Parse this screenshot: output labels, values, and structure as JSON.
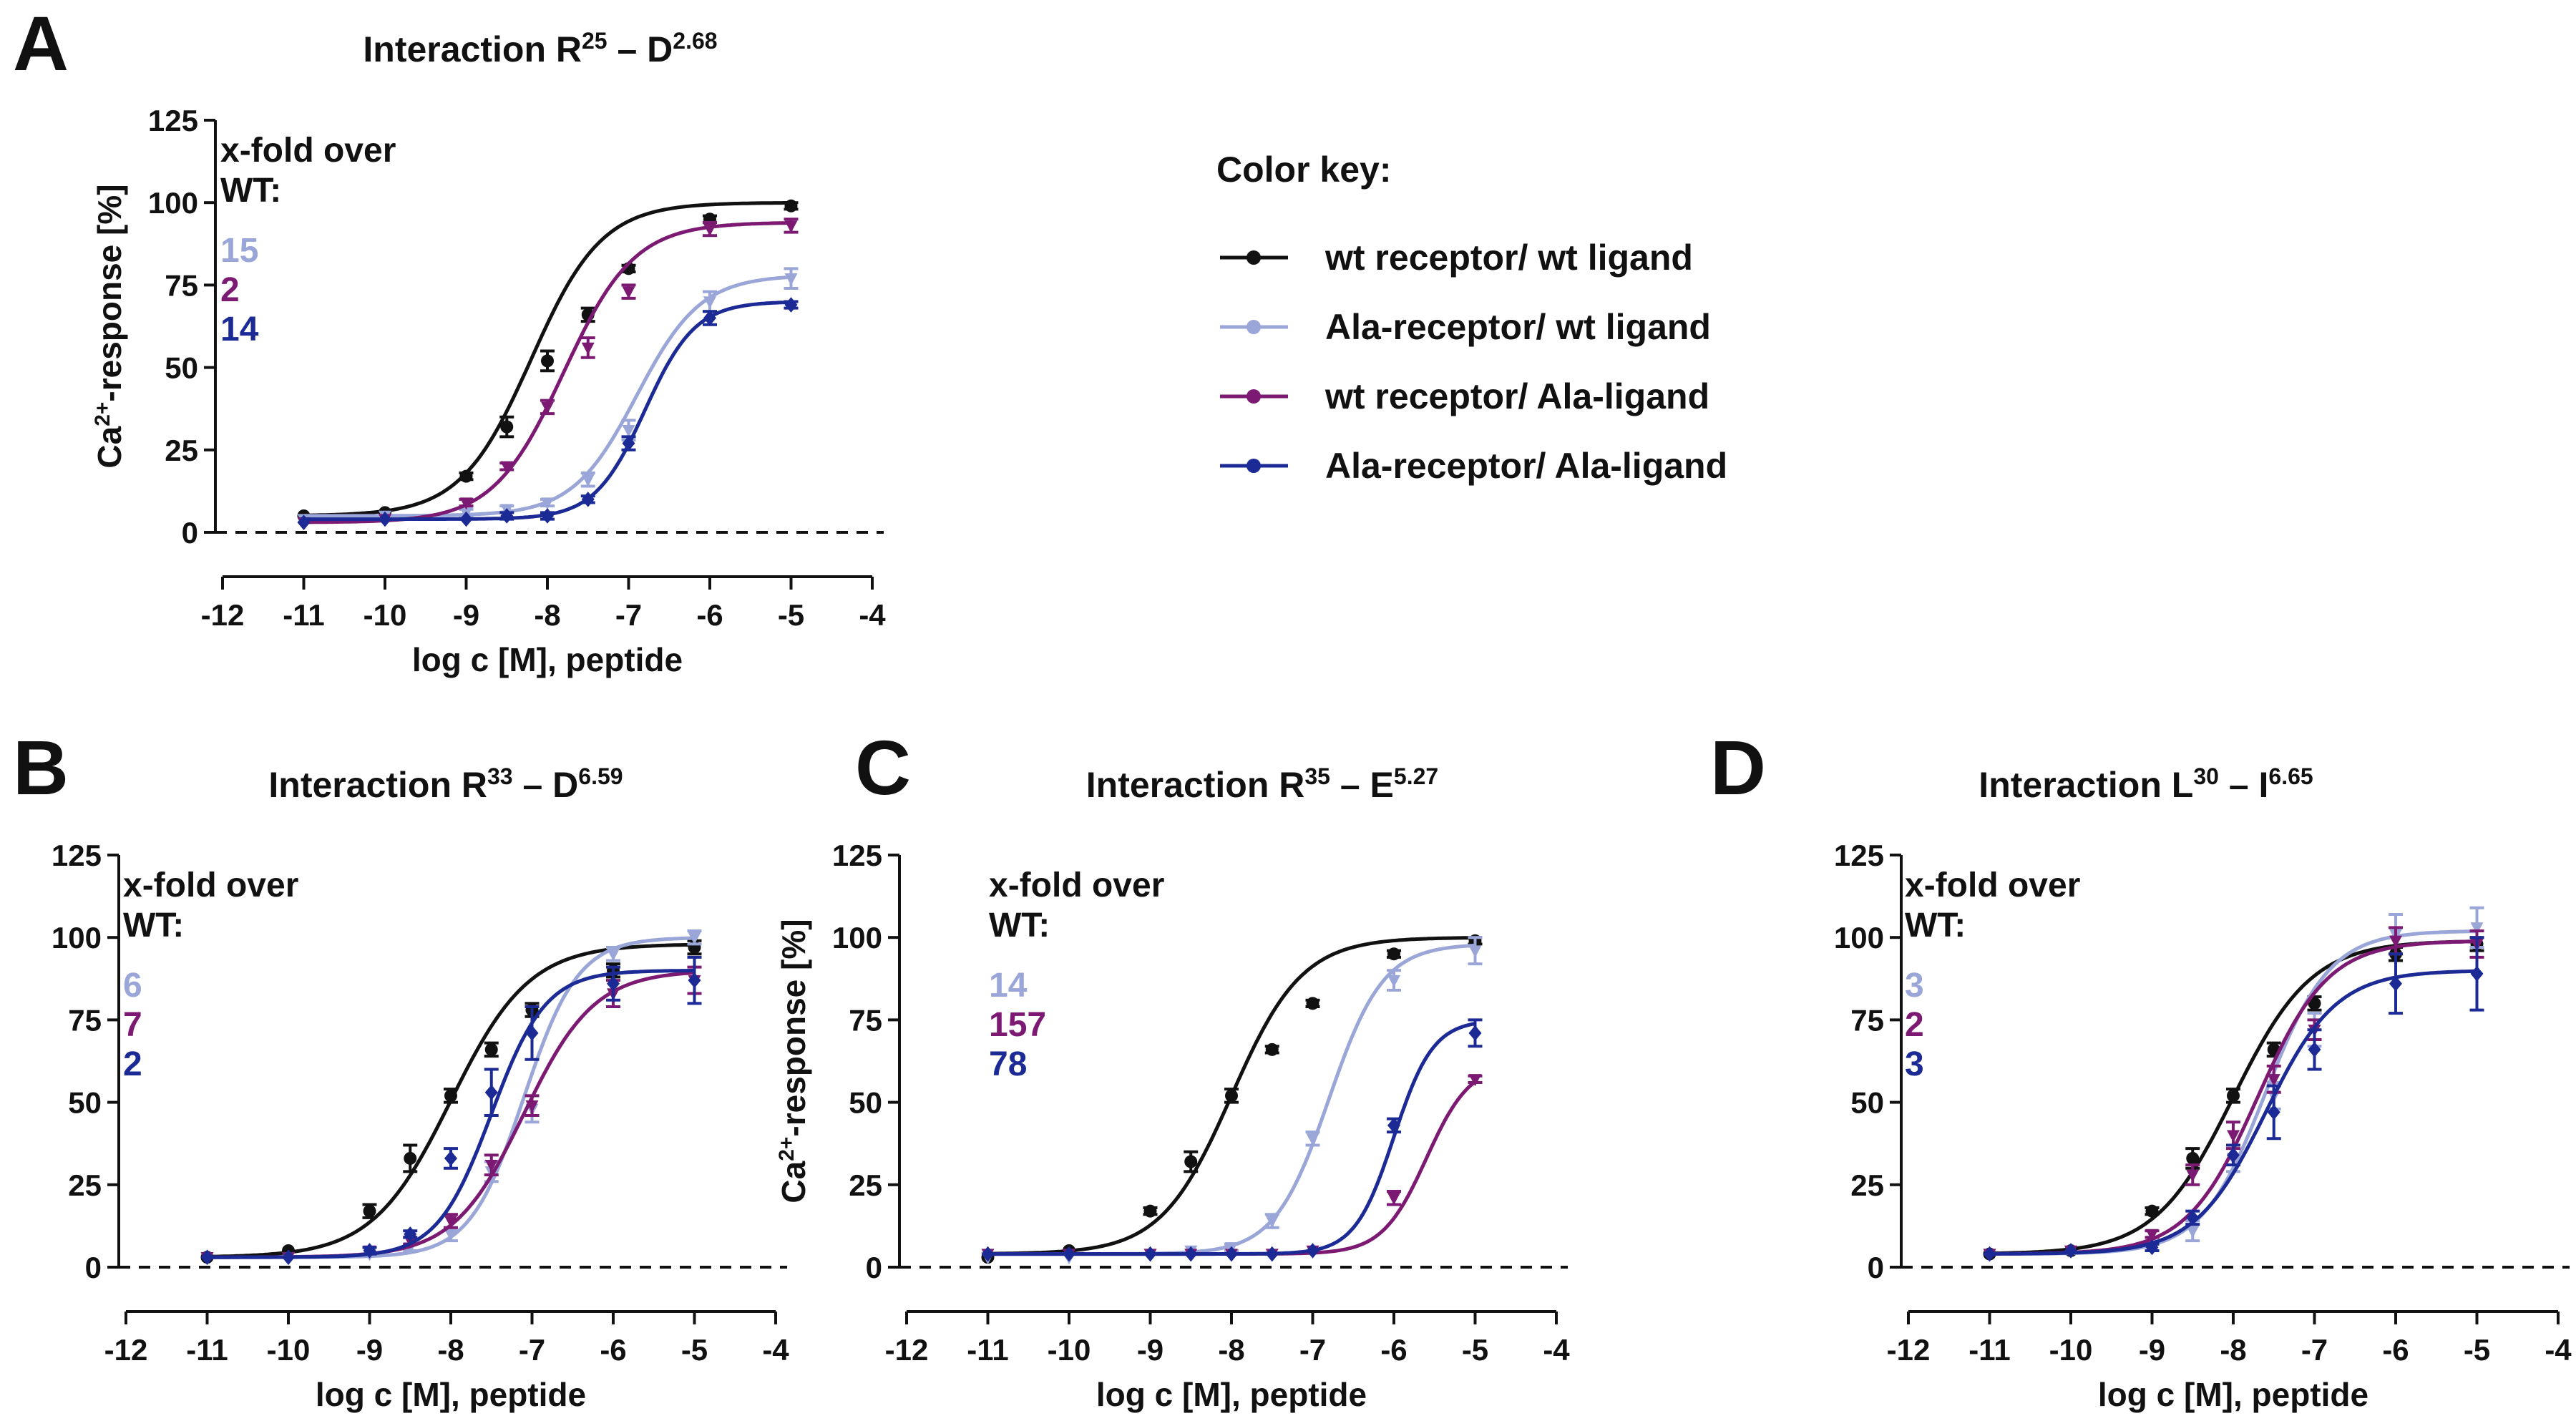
{
  "colors": {
    "wt_wt": "#111111",
    "ala_wt": "#9aa6d8",
    "wt_ala": "#7c1a73",
    "ala_ala": "#1c2a96",
    "axis": "#111111"
  },
  "color_key": {
    "title": "Color key:",
    "entries": [
      {
        "label": "wt receptor/ wt ligand",
        "color": "#111111"
      },
      {
        "label": "Ala-receptor/ wt ligand",
        "color": "#9aa6d8"
      },
      {
        "label": "wt receptor/ Ala-ligand",
        "color": "#7c1a73"
      },
      {
        "label": "Ala-receptor/ Ala-ligand",
        "color": "#1c2a96"
      }
    ]
  },
  "chart_data": [
    {
      "type": "line",
      "panel": "A",
      "title": {
        "main": "Interaction R",
        "sup1": "25",
        "mid": " – D",
        "sup2": "2.68"
      },
      "xlabel": "log c [M], peptide",
      "ylabel": {
        "pre": "Ca",
        "sup": "2+",
        "post": "-response [%]"
      },
      "xlim": [
        -12,
        -4
      ],
      "ylim": [
        0,
        125
      ],
      "xticks": [
        -12,
        -11,
        -10,
        -9,
        -8,
        -7,
        -6,
        -5,
        -4
      ],
      "yticks": [
        0,
        25,
        50,
        75,
        100,
        125
      ],
      "baseline": 0,
      "fold_header": [
        "x-fold over",
        "WT:"
      ],
      "fold_values": [
        {
          "text": "15",
          "color": "#9aa6d8"
        },
        {
          "text": "2",
          "color": "#7c1a73"
        },
        {
          "text": "14",
          "color": "#1c2a96"
        }
      ],
      "x": [
        -11,
        -10,
        -9,
        -8.5,
        -8,
        -7.5,
        -7,
        -6,
        -5
      ],
      "series": [
        {
          "color": "#111111",
          "marker": "circle",
          "values": [
            5,
            6,
            17,
            32,
            52,
            66,
            80,
            95,
            99
          ],
          "errors": [
            0,
            0,
            1,
            3,
            3,
            2,
            1,
            1,
            1
          ],
          "fit": {
            "bottom": 5,
            "top": 100,
            "ec50": -8.2,
            "hill": 1.0
          }
        },
        {
          "color": "#9aa6d8",
          "marker": "down",
          "values": [
            4,
            5,
            6,
            7,
            9,
            16,
            31,
            70,
            77
          ],
          "errors": [
            0,
            0,
            1,
            1,
            1,
            2,
            3,
            3,
            3
          ],
          "fit": {
            "bottom": 5,
            "top": 78,
            "ec50": -6.9,
            "hill": 1.1
          }
        },
        {
          "color": "#7c1a73",
          "marker": "down",
          "values": [
            3,
            4,
            9,
            20,
            38,
            56,
            73,
            92,
            93
          ],
          "errors": [
            0,
            0,
            1,
            1,
            2,
            3,
            2,
            2,
            2
          ],
          "fit": {
            "bottom": 3,
            "top": 94,
            "ec50": -7.8,
            "hill": 1.0
          }
        },
        {
          "color": "#1c2a96",
          "marker": "diamond",
          "values": [
            3,
            4,
            4,
            5,
            5,
            10,
            27,
            65,
            69
          ],
          "errors": [
            0,
            0,
            0,
            1,
            1,
            1,
            2,
            2,
            1
          ],
          "fit": {
            "bottom": 4,
            "top": 70,
            "ec50": -6.8,
            "hill": 1.4
          }
        }
      ]
    },
    {
      "type": "line",
      "panel": "B",
      "title": {
        "main": "Interaction R",
        "sup1": "33",
        "mid": " – D",
        "sup2": "6.59"
      },
      "xlabel": "log c [M], peptide",
      "ylabel": null,
      "xlim": [
        -12,
        -4
      ],
      "ylim": [
        0,
        125
      ],
      "xticks": [
        -12,
        -11,
        -10,
        -9,
        -8,
        -7,
        -6,
        -5,
        -4
      ],
      "yticks": [
        0,
        25,
        50,
        75,
        100,
        125
      ],
      "baseline": 0,
      "fold_header": [
        "x-fold over",
        "WT:"
      ],
      "fold_values": [
        {
          "text": "6",
          "color": "#9aa6d8"
        },
        {
          "text": "7",
          "color": "#7c1a73"
        },
        {
          "text": "2",
          "color": "#1c2a96"
        }
      ],
      "x": [
        -11,
        -10,
        -9,
        -8.5,
        -8,
        -7.5,
        -7,
        -6,
        -5
      ],
      "series": [
        {
          "color": "#111111",
          "marker": "circle",
          "values": [
            3,
            5,
            17,
            33,
            52,
            66,
            78,
            90,
            97
          ],
          "errors": [
            0,
            0,
            2,
            4,
            2,
            2,
            2,
            2,
            2
          ],
          "fit": {
            "bottom": 3,
            "top": 98,
            "ec50": -8.0,
            "hill": 0.9
          }
        },
        {
          "color": "#9aa6d8",
          "marker": "down",
          "values": [
            3,
            3,
            4,
            6,
            10,
            29,
            48,
            95,
            100
          ],
          "errors": [
            0,
            0,
            0,
            1,
            2,
            3,
            4,
            2,
            2
          ],
          "fit": {
            "bottom": 3,
            "top": 100,
            "ec50": -7.1,
            "hill": 1.3
          }
        },
        {
          "color": "#7c1a73",
          "marker": "down",
          "values": [
            3,
            3,
            5,
            8,
            14,
            31,
            49,
            83,
            87
          ],
          "errors": [
            0,
            0,
            1,
            1,
            2,
            3,
            3,
            4,
            4
          ],
          "fit": {
            "bottom": 3,
            "top": 90,
            "ec50": -7.1,
            "hill": 1.0
          }
        },
        {
          "color": "#1c2a96",
          "marker": "diamond",
          "values": [
            3,
            3,
            5,
            10,
            33,
            53,
            71,
            86,
            87
          ],
          "errors": [
            0,
            0,
            1,
            1,
            3,
            7,
            8,
            5,
            7
          ],
          "fit": {
            "bottom": 3,
            "top": 90,
            "ec50": -7.5,
            "hill": 1.3
          }
        }
      ]
    },
    {
      "type": "line",
      "panel": "C",
      "title": {
        "main": "Interaction R",
        "sup1": "35",
        "mid": " – E",
        "sup2": "5.27"
      },
      "xlabel": "log c [M], peptide",
      "ylabel": {
        "pre": "Ca",
        "sup": "2+",
        "post": "-response [%]"
      },
      "xlim": [
        -12,
        -4
      ],
      "ylim": [
        0,
        125
      ],
      "xticks": [
        -12,
        -11,
        -10,
        -9,
        -8,
        -7,
        -6,
        -5,
        -4
      ],
      "yticks": [
        0,
        25,
        50,
        75,
        100,
        125
      ],
      "baseline": 0,
      "fold_header": [
        "x-fold over",
        "WT:"
      ],
      "fold_values": [
        {
          "text": "14",
          "color": "#9aa6d8"
        },
        {
          "text": "157",
          "color": "#7c1a73"
        },
        {
          "text": "78",
          "color": "#1c2a96"
        }
      ],
      "x": [
        -11,
        -10,
        -9,
        -8.5,
        -8,
        -7.5,
        -7,
        -6,
        -5
      ],
      "series": [
        {
          "color": "#111111",
          "marker": "circle",
          "values": [
            3,
            5,
            17,
            32,
            52,
            66,
            80,
            95,
            99
          ],
          "errors": [
            0,
            0,
            1,
            3,
            2,
            1,
            1,
            1,
            1
          ],
          "fit": {
            "bottom": 4,
            "top": 100,
            "ec50": -8.0,
            "hill": 1.0
          }
        },
        {
          "color": "#9aa6d8",
          "marker": "down",
          "values": [
            3,
            3,
            4,
            5,
            6,
            14,
            39,
            87,
            96
          ],
          "errors": [
            0,
            0,
            0,
            0,
            1,
            2,
            2,
            3,
            4
          ],
          "fit": {
            "bottom": 4,
            "top": 98,
            "ec50": -6.8,
            "hill": 1.3
          }
        },
        {
          "color": "#7c1a73",
          "marker": "down",
          "values": [
            4,
            4,
            4,
            4,
            4,
            4,
            5,
            21,
            57
          ],
          "errors": [
            0,
            0,
            0,
            0,
            0,
            0,
            0,
            2,
            1
          ],
          "fit": {
            "bottom": 4,
            "top": 62,
            "ec50": -5.6,
            "hill": 1.6
          }
        },
        {
          "color": "#1c2a96",
          "marker": "diamond",
          "values": [
            4,
            4,
            4,
            4,
            4,
            4,
            5,
            43,
            71
          ],
          "errors": [
            0,
            0,
            0,
            0,
            0,
            0,
            0,
            2,
            4
          ],
          "fit": {
            "bottom": 4,
            "top": 75,
            "ec50": -6.0,
            "hill": 1.8
          }
        }
      ]
    },
    {
      "type": "line",
      "panel": "D",
      "title": {
        "main": "Interaction L",
        "sup1": "30",
        "mid": " – I",
        "sup2": "6.65"
      },
      "xlabel": "log c [M], peptide",
      "ylabel": null,
      "xlim": [
        -12,
        -4
      ],
      "ylim": [
        0,
        125
      ],
      "xticks": [
        -12,
        -11,
        -10,
        -9,
        -8,
        -7,
        -6,
        -5,
        -4
      ],
      "yticks": [
        0,
        25,
        50,
        75,
        100,
        125
      ],
      "baseline": 0,
      "fold_header": [
        "x-fold over",
        "WT:"
      ],
      "fold_values": [
        {
          "text": "3",
          "color": "#9aa6d8"
        },
        {
          "text": "2",
          "color": "#7c1a73"
        },
        {
          "text": "3",
          "color": "#1c2a96"
        }
      ],
      "x": [
        -11,
        -10,
        -9,
        -8.5,
        -8,
        -7.5,
        -7,
        -6,
        -5
      ],
      "series": [
        {
          "color": "#111111",
          "marker": "circle",
          "values": [
            4,
            5,
            17,
            33,
            52,
            66,
            80,
            95,
            98
          ],
          "errors": [
            0,
            0,
            1,
            3,
            2,
            2,
            2,
            2,
            2
          ],
          "fit": {
            "bottom": 4,
            "top": 99,
            "ec50": -8.0,
            "hill": 0.9
          }
        },
        {
          "color": "#9aa6d8",
          "marker": "down",
          "values": [
            4,
            5,
            8,
            11,
            33,
            52,
            72,
            101,
            103
          ],
          "errors": [
            0,
            0,
            1,
            3,
            4,
            4,
            5,
            6,
            6
          ],
          "fit": {
            "bottom": 4,
            "top": 102,
            "ec50": -7.6,
            "hill": 1.1
          }
        },
        {
          "color": "#7c1a73",
          "marker": "down",
          "values": [
            4,
            5,
            10,
            28,
            40,
            57,
            72,
            99,
            98
          ],
          "errors": [
            0,
            0,
            1,
            3,
            4,
            4,
            3,
            4,
            4
          ],
          "fit": {
            "bottom": 4,
            "top": 99,
            "ec50": -7.7,
            "hill": 1.0
          }
        },
        {
          "color": "#1c2a96",
          "marker": "diamond",
          "values": [
            4,
            5,
            6,
            15,
            34,
            47,
            66,
            86,
            89
          ],
          "errors": [
            0,
            0,
            1,
            2,
            3,
            8,
            6,
            9,
            11
          ],
          "fit": {
            "bottom": 4,
            "top": 90,
            "ec50": -7.6,
            "hill": 1.0
          }
        }
      ]
    }
  ]
}
